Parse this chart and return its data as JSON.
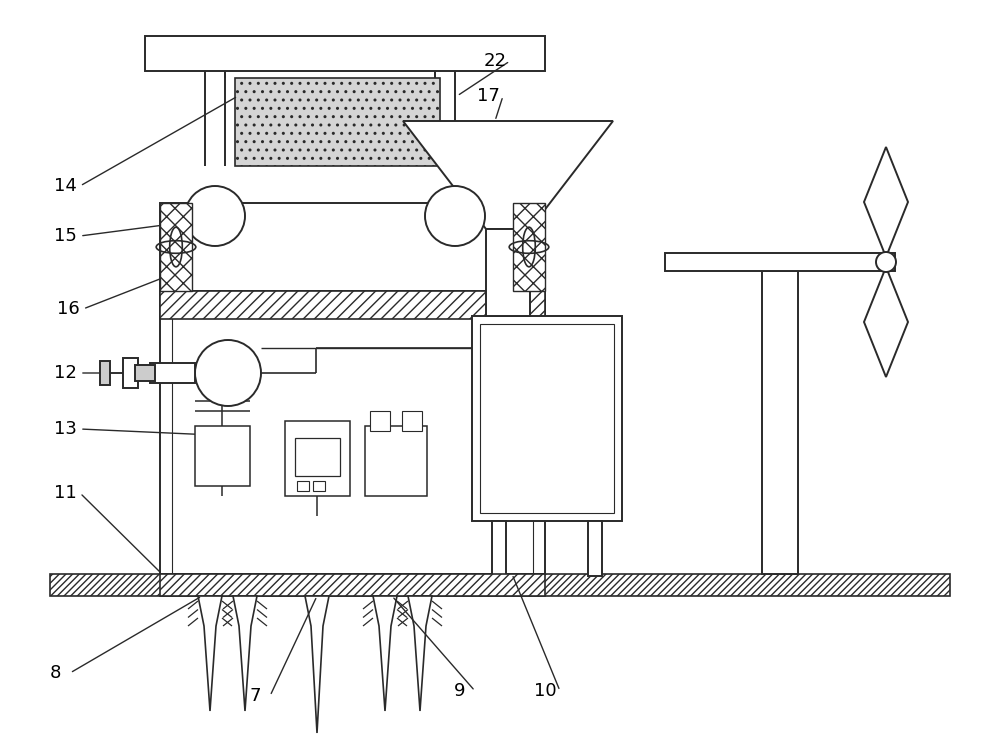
{
  "bg_color": "#ffffff",
  "line_color": "#2a2a2a",
  "label_color": "#000000",
  "fig_width": 10.0,
  "fig_height": 7.51
}
